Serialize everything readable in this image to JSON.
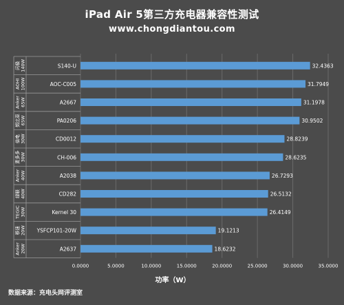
{
  "chart_data": {
    "type": "bar",
    "orientation": "horizontal",
    "title": "iPad Air 5第三方充电器兼容性测试",
    "subtitle": "www.chongdiantou.com",
    "xlabel": "功率（W）",
    "xlim": [
      0,
      35
    ],
    "xticks": [
      "0.0000",
      "5.0000",
      "10.0000",
      "15.0000",
      "20.0000",
      "25.0000",
      "30.0000",
      "35.0000"
    ],
    "grid": true,
    "bar_color": "#5b9bd5",
    "categories": [
      {
        "group": [
          "闪极",
          "140W"
        ],
        "model": "S140-U",
        "value": 32.4363,
        "label": "32.4363"
      },
      {
        "group": [
          "AOHI",
          "100W"
        ],
        "model": "AOC-C005",
        "value": 31.7949,
        "label": "31.7949"
      },
      {
        "group": [
          "Anker",
          "65W"
        ],
        "model": "A2667",
        "value": 31.1978,
        "label": "31.1978"
      },
      {
        "group": [
          "努比亚",
          "65W"
        ],
        "model": "PA0206",
        "value": 30.9502,
        "label": "30.9502"
      },
      {
        "group": [
          "倍电",
          "30W"
        ],
        "model": "CD0012",
        "value": 28.8239,
        "label": "28.8239"
      },
      {
        "group": [
          "麦多多",
          "30W"
        ],
        "model": "CH-006",
        "value": 28.6235,
        "label": "28.6235"
      },
      {
        "group": [
          "Anker",
          "40W"
        ],
        "model": "A2038",
        "value": 26.7293,
        "label": "26.7293"
      },
      {
        "group": [
          "绿联",
          "40W"
        ],
        "model": "CD282",
        "value": 26.5132,
        "label": "26.5132"
      },
      {
        "group": [
          "TEGIC",
          "30W"
        ],
        "model": "Kernel 30",
        "value": 26.4149,
        "label": "26.4149"
      },
      {
        "group": [
          "移速",
          "20W"
        ],
        "model": "YSFCP101-20W",
        "value": 19.1213,
        "label": "19.1213"
      },
      {
        "group": [
          "Anker",
          "20W"
        ],
        "model": "A2637",
        "value": 18.6232,
        "label": "18.6232"
      }
    ]
  },
  "footer": {
    "source": "数据来源：充电头网评测室"
  }
}
